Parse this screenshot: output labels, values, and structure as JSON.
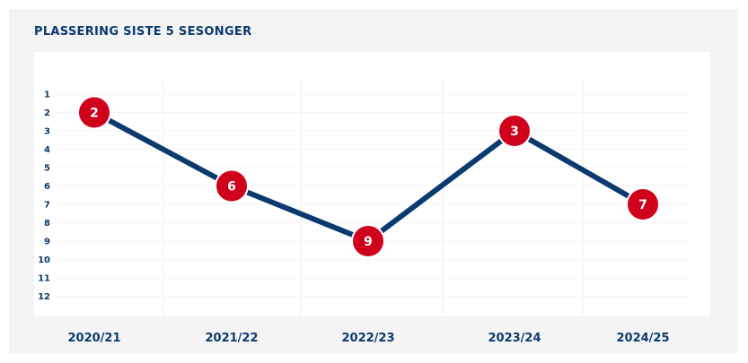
{
  "title": "PLASSERING SISTE 5 SESONGER",
  "colors": {
    "line": "#0b3a6e",
    "marker": "#d0021b",
    "marker_text": "#ffffff",
    "axis_text": "#0b3a6e",
    "panel": "#f4f4f4",
    "grid": "#eeeeee"
  },
  "chart_data": {
    "type": "line",
    "title": "PLASSERING SISTE 5 SESONGER",
    "categories": [
      "2020/21",
      "2021/22",
      "2022/23",
      "2023/24",
      "2024/25"
    ],
    "series": [
      {
        "values": [
          2,
          6,
          9,
          3,
          7
        ]
      }
    ],
    "ylim": [
      1,
      12
    ],
    "y_inverted": true,
    "yticks": [
      1,
      2,
      3,
      4,
      5,
      6,
      7,
      8,
      9,
      10,
      11,
      12
    ],
    "data_labels": true,
    "grid": true,
    "legend": "none"
  }
}
